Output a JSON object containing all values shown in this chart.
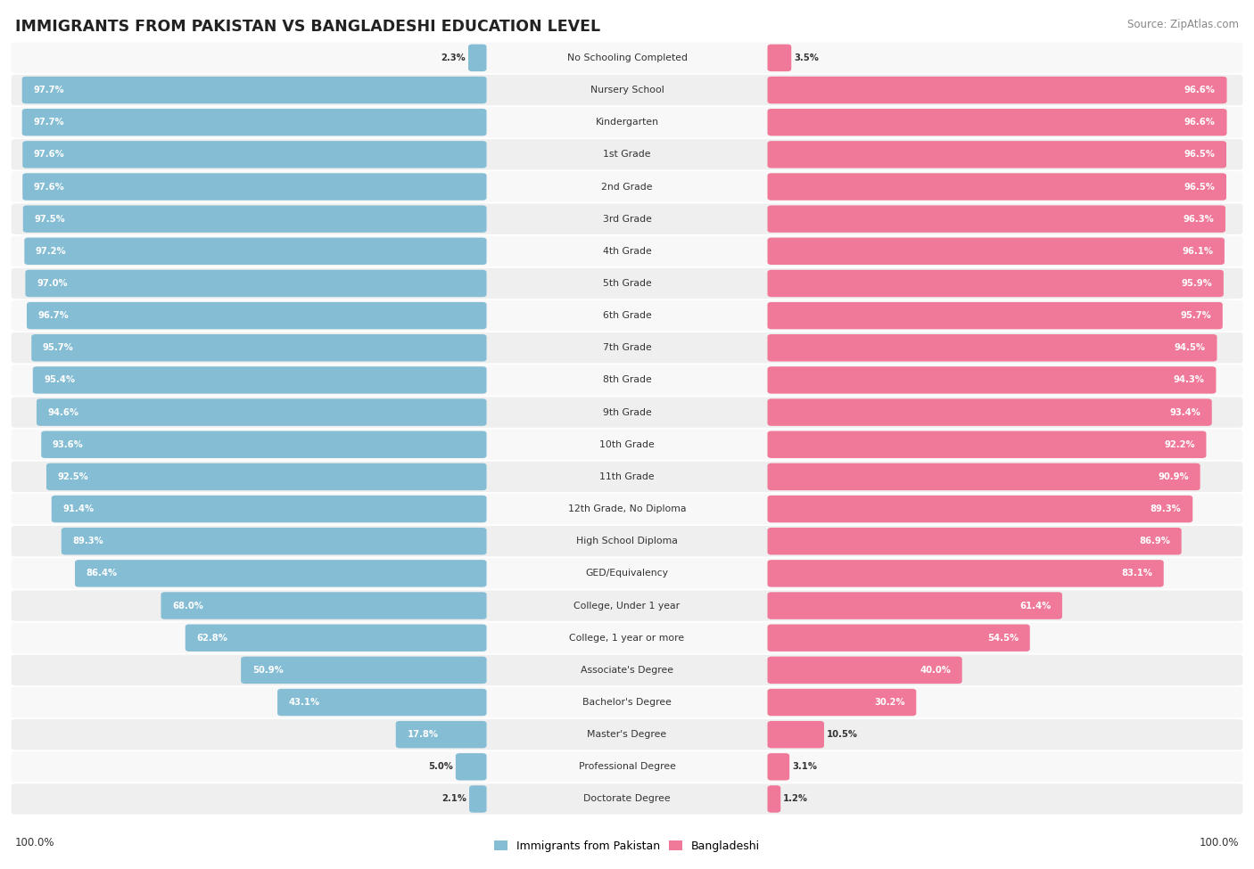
{
  "title": "IMMIGRANTS FROM PAKISTAN VS BANGLADESHI EDUCATION LEVEL",
  "source": "Source: ZipAtlas.com",
  "categories": [
    "No Schooling Completed",
    "Nursery School",
    "Kindergarten",
    "1st Grade",
    "2nd Grade",
    "3rd Grade",
    "4th Grade",
    "5th Grade",
    "6th Grade",
    "7th Grade",
    "8th Grade",
    "9th Grade",
    "10th Grade",
    "11th Grade",
    "12th Grade, No Diploma",
    "High School Diploma",
    "GED/Equivalency",
    "College, Under 1 year",
    "College, 1 year or more",
    "Associate's Degree",
    "Bachelor's Degree",
    "Master's Degree",
    "Professional Degree",
    "Doctorate Degree"
  ],
  "pakistan": [
    2.3,
    97.7,
    97.7,
    97.6,
    97.6,
    97.5,
    97.2,
    97.0,
    96.7,
    95.7,
    95.4,
    94.6,
    93.6,
    92.5,
    91.4,
    89.3,
    86.4,
    68.0,
    62.8,
    50.9,
    43.1,
    17.8,
    5.0,
    2.1
  ],
  "bangladeshi": [
    3.5,
    96.6,
    96.6,
    96.5,
    96.5,
    96.3,
    96.1,
    95.9,
    95.7,
    94.5,
    94.3,
    93.4,
    92.2,
    90.9,
    89.3,
    86.9,
    83.1,
    61.4,
    54.5,
    40.0,
    30.2,
    10.5,
    3.1,
    1.2
  ],
  "pakistan_color": "#85bdd4",
  "bangladeshi_color": "#f07898",
  "bar_bg_color": "#e5e5e5",
  "row_bg_color": "#f0f0f0",
  "legend_pakistan": "Immigrants from Pakistan",
  "legend_bangladeshi": "Bangladeshi",
  "axis_label": "100.0%"
}
